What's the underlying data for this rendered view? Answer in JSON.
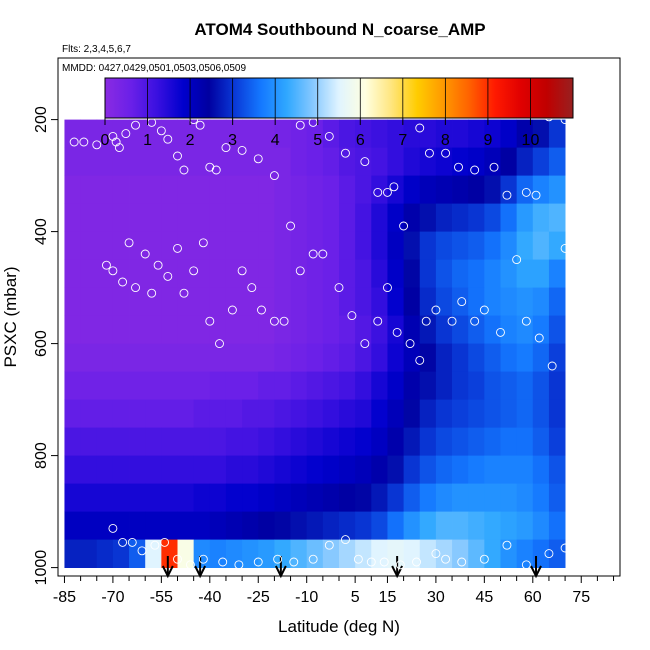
{
  "chart_data": {
    "type": "heatmap",
    "title": "ATOM4 Southbound N_coarse_AMP",
    "flights_label": "Flts: 2,3,4,5,6,7",
    "dates_label": "MMDD: 0427,0429,0501,0503,0506,0509",
    "xlabel": "Latitude (deg N)",
    "ylabel": "PSXC (mbar)",
    "xlim": [
      -87,
      87
    ],
    "ylim": [
      1015,
      90
    ],
    "x_ticks": [
      -85,
      -70,
      -55,
      -40,
      -25,
      -10,
      5,
      15,
      30,
      45,
      60,
      75
    ],
    "x_ticks_minor": [
      -80,
      -75,
      -65,
      -60,
      -50,
      -45,
      -35,
      -30,
      -20,
      -15,
      -5,
      0,
      10,
      20,
      25,
      35,
      40,
      50,
      55,
      65,
      70,
      80,
      85
    ],
    "y_ticks": [
      200,
      400,
      600,
      800,
      1000
    ],
    "colorbar": {
      "ticks": [
        0,
        1,
        2,
        3,
        4,
        5,
        6,
        7,
        8,
        9,
        10
      ],
      "range": [
        0,
        11
      ],
      "stops": [
        "#8a2be2",
        "#6a20e8",
        "#3a10e0",
        "#0000cd",
        "#0000a0",
        "#0a3ad8",
        "#1478ff",
        "#30a8ff",
        "#86c8ff",
        "#e0f4ff",
        "#ffffe0",
        "#ffe680",
        "#ffcc00",
        "#ff9a00",
        "#ff6200",
        "#ff1a00",
        "#e00000",
        "#c00000",
        "#982020"
      ]
    },
    "lat_bins": [
      -82.5,
      -77.5,
      -72.5,
      -67.5,
      -62.5,
      -57.5,
      -52.5,
      -47.5,
      -42.5,
      -37.5,
      -32.5,
      -27.5,
      -22.5,
      -17.5,
      -12.5,
      -7.5,
      -2.5,
      2.5,
      7.5,
      12.5,
      17.5,
      22.5,
      27.5,
      32.5,
      37.5,
      42.5,
      47.5,
      52.5,
      57.5,
      62.5,
      67.5
    ],
    "pressure_bins": [
      225,
      275,
      325,
      375,
      425,
      475,
      525,
      575,
      625,
      675,
      725,
      775,
      825,
      875,
      925,
      975
    ],
    "z": [
      [
        0.3,
        0.3,
        0.3,
        0.3,
        0.3,
        0.3,
        0.3,
        0.3,
        0.3,
        0.3,
        0.3,
        0.3,
        0.3,
        0.4,
        0.5,
        0.6,
        0.8,
        1.0,
        1.1,
        1.2,
        1.3,
        1.4,
        1.4,
        1.5,
        1.5,
        1.6,
        1.7,
        1.9,
        2.3,
        2.6,
        3.0
      ],
      [
        0.3,
        0.3,
        0.3,
        0.3,
        0.3,
        0.3,
        0.3,
        0.3,
        0.3,
        0.3,
        0.3,
        0.3,
        0.3,
        0.3,
        0.5,
        0.6,
        0.7,
        0.9,
        1.0,
        1.1,
        1.3,
        1.5,
        1.6,
        1.7,
        1.8,
        1.9,
        2.1,
        2.4,
        2.8,
        3.1,
        3.4
      ],
      [
        0.2,
        0.2,
        0.2,
        0.2,
        0.2,
        0.2,
        0.2,
        0.2,
        0.2,
        0.2,
        0.2,
        0.2,
        0.2,
        0.3,
        0.4,
        0.5,
        0.6,
        0.8,
        1.0,
        1.3,
        1.6,
        1.9,
        2.1,
        2.2,
        2.3,
        2.4,
        2.6,
        3.0,
        3.5,
        3.8,
        4.0
      ],
      [
        0.2,
        0.2,
        0.2,
        0.2,
        0.2,
        0.2,
        0.2,
        0.2,
        0.2,
        0.2,
        0.2,
        0.2,
        0.2,
        0.3,
        0.4,
        0.5,
        0.6,
        0.8,
        1.1,
        1.5,
        1.9,
        2.3,
        2.6,
        2.8,
        2.9,
        3.0,
        3.2,
        3.6,
        4.1,
        4.4,
        4.5
      ],
      [
        0.2,
        0.2,
        0.2,
        0.2,
        0.2,
        0.2,
        0.2,
        0.2,
        0.2,
        0.2,
        0.2,
        0.2,
        0.2,
        0.3,
        0.4,
        0.5,
        0.6,
        0.8,
        1.1,
        1.5,
        2.0,
        2.6,
        3.0,
        3.2,
        3.3,
        3.4,
        3.6,
        3.9,
        4.3,
        4.5,
        4.3
      ],
      [
        0.2,
        0.2,
        0.2,
        0.2,
        0.2,
        0.2,
        0.2,
        0.2,
        0.2,
        0.2,
        0.2,
        0.2,
        0.2,
        0.3,
        0.4,
        0.5,
        0.6,
        0.8,
        1.0,
        1.4,
        1.9,
        2.5,
        3.0,
        3.3,
        3.5,
        3.6,
        3.8,
        4.0,
        4.2,
        4.2,
        3.8
      ],
      [
        0.2,
        0.2,
        0.2,
        0.2,
        0.2,
        0.2,
        0.2,
        0.2,
        0.2,
        0.2,
        0.2,
        0.2,
        0.2,
        0.3,
        0.4,
        0.5,
        0.6,
        0.8,
        1.0,
        1.3,
        1.8,
        2.4,
        2.9,
        3.2,
        3.4,
        3.6,
        3.8,
        3.9,
        4.0,
        3.9,
        3.5
      ],
      [
        0.2,
        0.2,
        0.2,
        0.2,
        0.2,
        0.2,
        0.2,
        0.2,
        0.2,
        0.2,
        0.2,
        0.2,
        0.2,
        0.3,
        0.4,
        0.5,
        0.6,
        0.7,
        0.9,
        1.2,
        1.6,
        2.2,
        2.7,
        3.0,
        3.2,
        3.4,
        3.6,
        3.8,
        3.9,
        3.7,
        3.3
      ],
      [
        0.3,
        0.3,
        0.3,
        0.3,
        0.3,
        0.3,
        0.3,
        0.3,
        0.3,
        0.3,
        0.3,
        0.3,
        0.3,
        0.4,
        0.5,
        0.6,
        0.7,
        0.8,
        1.0,
        1.3,
        1.7,
        2.1,
        2.5,
        2.8,
        3.0,
        3.2,
        3.4,
        3.6,
        3.7,
        3.5,
        3.1
      ],
      [
        0.5,
        0.5,
        0.5,
        0.5,
        0.5,
        0.5,
        0.5,
        0.5,
        0.5,
        0.6,
        0.6,
        0.6,
        0.7,
        0.7,
        0.8,
        0.9,
        1.0,
        1.1,
        1.3,
        1.6,
        1.9,
        2.3,
        2.6,
        2.8,
        3.0,
        3.1,
        3.3,
        3.4,
        3.5,
        3.3,
        3.0
      ],
      [
        0.7,
        0.7,
        0.7,
        0.7,
        0.7,
        0.7,
        0.7,
        0.7,
        0.8,
        0.8,
        0.8,
        0.9,
        0.9,
        1.0,
        1.1,
        1.2,
        1.3,
        1.4,
        1.5,
        1.8,
        2.1,
        2.5,
        2.8,
        3.0,
        3.1,
        3.2,
        3.3,
        3.4,
        3.5,
        3.3,
        3.0
      ],
      [
        1.0,
        1.0,
        1.0,
        1.0,
        1.0,
        1.0,
        1.0,
        1.0,
        1.0,
        1.0,
        1.1,
        1.1,
        1.2,
        1.3,
        1.4,
        1.5,
        1.6,
        1.7,
        1.8,
        2.0,
        2.3,
        2.7,
        3.0,
        3.2,
        3.3,
        3.4,
        3.5,
        3.6,
        3.6,
        3.4,
        3.1
      ],
      [
        1.3,
        1.3,
        1.3,
        1.3,
        1.3,
        1.3,
        1.3,
        1.3,
        1.3,
        1.3,
        1.4,
        1.4,
        1.5,
        1.6,
        1.7,
        1.8,
        1.9,
        2.0,
        2.1,
        2.3,
        2.6,
        3.0,
        3.3,
        3.5,
        3.6,
        3.7,
        3.8,
        3.8,
        3.8,
        3.6,
        3.3
      ],
      [
        1.6,
        1.6,
        1.6,
        1.6,
        1.6,
        1.6,
        1.6,
        1.6,
        1.7,
        1.7,
        1.8,
        1.8,
        1.9,
        2.0,
        2.1,
        2.2,
        2.3,
        2.4,
        2.5,
        2.7,
        3.0,
        3.4,
        3.7,
        3.9,
        4.0,
        4.0,
        4.0,
        4.0,
        3.9,
        3.7,
        3.4
      ],
      [
        2.0,
        2.0,
        2.0,
        2.0,
        2.0,
        2.0,
        2.0,
        2.0,
        2.0,
        2.1,
        2.2,
        2.3,
        2.4,
        2.5,
        2.6,
        2.7,
        2.8,
        2.9,
        3.0,
        3.2,
        3.6,
        4.0,
        4.3,
        4.5,
        4.5,
        4.4,
        4.3,
        4.2,
        4.1,
        3.9,
        3.6
      ],
      [
        2.8,
        2.8,
        2.9,
        3.0,
        3.4,
        5.5,
        9.0,
        6.0,
        3.9,
        3.8,
        3.9,
        4.0,
        4.1,
        4.3,
        4.5,
        4.7,
        4.9,
        5.1,
        5.3,
        5.5,
        5.6,
        5.5,
        5.3,
        5.1,
        4.9,
        4.6,
        4.3,
        4.0,
        3.8,
        3.6,
        3.4
      ]
    ],
    "profile_markers_lat": [
      -53,
      -43,
      -18,
      18,
      61
    ],
    "obs_points": [
      [
        -82,
        240
      ],
      [
        -79,
        240
      ],
      [
        -75,
        245
      ],
      [
        -70,
        230
      ],
      [
        -69,
        240
      ],
      [
        -68,
        250
      ],
      [
        -66,
        225
      ],
      [
        -63,
        210
      ],
      [
        -58,
        205
      ],
      [
        -55,
        220
      ],
      [
        -53,
        235
      ],
      [
        -50,
        265
      ],
      [
        -48,
        290
      ],
      [
        -45,
        200
      ],
      [
        -43,
        210
      ],
      [
        -40,
        285
      ],
      [
        -38,
        290
      ],
      [
        -35,
        250
      ],
      [
        -30,
        255
      ],
      [
        -25,
        270
      ],
      [
        -20,
        300
      ],
      [
        -15,
        390
      ],
      [
        -12,
        210
      ],
      [
        -8,
        205
      ],
      [
        -3,
        230
      ],
      [
        2,
        260
      ],
      [
        8,
        275
      ],
      [
        12,
        330
      ],
      [
        15,
        330
      ],
      [
        17,
        320
      ],
      [
        20,
        390
      ],
      [
        25,
        215
      ],
      [
        28,
        260
      ],
      [
        33,
        260
      ],
      [
        37,
        285
      ],
      [
        42,
        290
      ],
      [
        48,
        285
      ],
      [
        52,
        335
      ],
      [
        58,
        330
      ],
      [
        61,
        335
      ],
      [
        65,
        195
      ],
      [
        70,
        200
      ],
      [
        -72,
        460
      ],
      [
        -70,
        470
      ],
      [
        -67,
        490
      ],
      [
        -65,
        420
      ],
      [
        -63,
        500
      ],
      [
        -60,
        440
      ],
      [
        -58,
        510
      ],
      [
        -56,
        460
      ],
      [
        -53,
        480
      ],
      [
        -50,
        430
      ],
      [
        -48,
        510
      ],
      [
        -45,
        470
      ],
      [
        -42,
        420
      ],
      [
        -40,
        560
      ],
      [
        -37,
        600
      ],
      [
        -33,
        540
      ],
      [
        -30,
        470
      ],
      [
        -27,
        500
      ],
      [
        -24,
        540
      ],
      [
        -20,
        560
      ],
      [
        -17,
        560
      ],
      [
        -12,
        470
      ],
      [
        -8,
        440
      ],
      [
        -5,
        440
      ],
      [
        0,
        500
      ],
      [
        4,
        550
      ],
      [
        8,
        600
      ],
      [
        12,
        560
      ],
      [
        15,
        500
      ],
      [
        18,
        580
      ],
      [
        22,
        600
      ],
      [
        25,
        630
      ],
      [
        27,
        560
      ],
      [
        30,
        540
      ],
      [
        35,
        560
      ],
      [
        38,
        525
      ],
      [
        42,
        560
      ],
      [
        45,
        540
      ],
      [
        50,
        580
      ],
      [
        55,
        450
      ],
      [
        58,
        560
      ],
      [
        62,
        590
      ],
      [
        66,
        640
      ],
      [
        70,
        430
      ],
      [
        72,
        450
      ],
      [
        -70,
        930
      ],
      [
        -67,
        955
      ],
      [
        -64,
        955
      ],
      [
        -61,
        970
      ],
      [
        -57,
        960
      ],
      [
        -54,
        955
      ],
      [
        -50,
        985
      ],
      [
        -46,
        995
      ],
      [
        -42,
        985
      ],
      [
        -36,
        990
      ],
      [
        -31,
        995
      ],
      [
        -25,
        990
      ],
      [
        -19,
        985
      ],
      [
        -14,
        990
      ],
      [
        -8,
        985
      ],
      [
        -3,
        960
      ],
      [
        2,
        950
      ],
      [
        6,
        985
      ],
      [
        10,
        990
      ],
      [
        14,
        990
      ],
      [
        19,
        995
      ],
      [
        24,
        990
      ],
      [
        30,
        975
      ],
      [
        33,
        985
      ],
      [
        38,
        990
      ],
      [
        45,
        985
      ],
      [
        52,
        960
      ],
      [
        58,
        995
      ],
      [
        65,
        975
      ],
      [
        70,
        965
      ],
      [
        72,
        985
      ]
    ]
  }
}
